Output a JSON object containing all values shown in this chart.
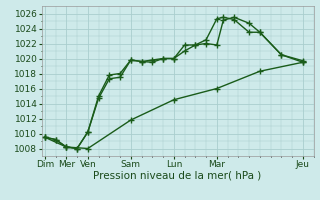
{
  "title": "",
  "xlabel": "Pression niveau de la mer( hPa )",
  "ylabel": "",
  "background_color": "#ceeaea",
  "grid_color": "#aacece",
  "line_color": "#1a5c1a",
  "ylim": [
    1007,
    1027
  ],
  "ytick_min": 1008,
  "ytick_max": 1026,
  "ytick_step": 2,
  "x_major_labels": [
    "Dim",
    "Mer",
    "Ven",
    "Sam",
    "Lun",
    "Mar",
    "Jeu"
  ],
  "x_major_pos": [
    0,
    1,
    2,
    4,
    6,
    8,
    12
  ],
  "series1_x": [
    0,
    0.5,
    1,
    1.5,
    2,
    2.5,
    3,
    3.5,
    4,
    4.5,
    5,
    5.5,
    6,
    6.5,
    7,
    7.5,
    8,
    8.3,
    8.8,
    9.5,
    10,
    11,
    12
  ],
  "series1_y": [
    1009.5,
    1009.2,
    1008.2,
    1008.0,
    1010.2,
    1014.7,
    1017.3,
    1017.5,
    1019.8,
    1019.6,
    1019.5,
    1020.0,
    1020.0,
    1021.0,
    1021.8,
    1022.0,
    1021.8,
    1025.1,
    1025.5,
    1024.7,
    1023.5,
    1020.5,
    1019.5
  ],
  "series2_x": [
    0,
    0.5,
    1,
    1.5,
    2,
    2.5,
    3,
    3.5,
    4,
    4.5,
    5,
    5.5,
    6,
    6.5,
    7,
    7.5,
    8,
    8.3,
    8.8,
    9.5,
    10,
    11,
    12
  ],
  "series2_y": [
    1009.5,
    1009.2,
    1008.2,
    1008.0,
    1010.2,
    1015.0,
    1017.8,
    1018.0,
    1019.8,
    1019.6,
    1019.8,
    1020.0,
    1020.0,
    1021.8,
    1021.8,
    1022.5,
    1025.3,
    1025.5,
    1025.2,
    1023.5,
    1023.5,
    1020.5,
    1019.7
  ],
  "series3_x": [
    0,
    1,
    2,
    4,
    6,
    8,
    10,
    12
  ],
  "series3_y": [
    1009.5,
    1008.2,
    1008.0,
    1011.8,
    1014.5,
    1016.0,
    1018.3,
    1019.5
  ],
  "marker": "+",
  "markersize": 4,
  "linewidth": 1.0,
  "xlabel_fontsize": 7.5,
  "tick_fontsize": 6.5,
  "xlim_left": -0.15,
  "xlim_right": 12.4
}
